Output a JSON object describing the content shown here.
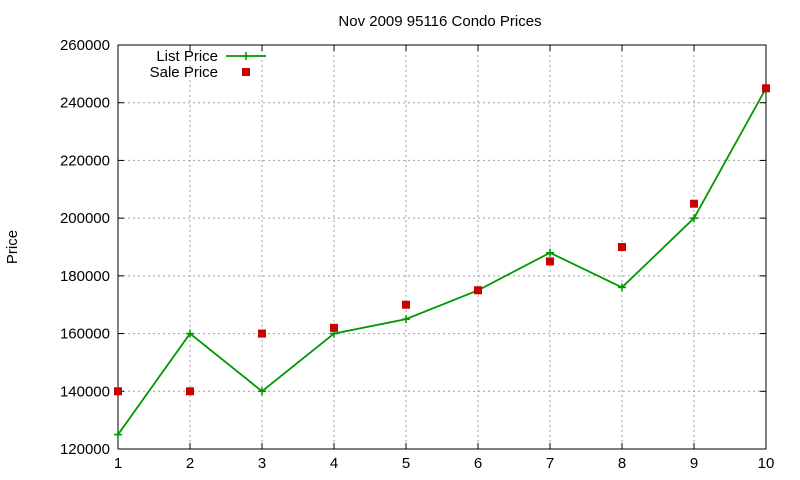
{
  "chart_data": {
    "type": "line",
    "title": "Nov 2009 95116 Condo Prices",
    "xlabel": "",
    "ylabel": "Price",
    "xlim": [
      1,
      10
    ],
    "ylim": [
      120000,
      260000
    ],
    "x_ticks": [
      "1",
      "2",
      "3",
      "4",
      "5",
      "6",
      "7",
      "8",
      "9",
      "10"
    ],
    "y_ticks": [
      "120000",
      "140000",
      "160000",
      "180000",
      "200000",
      "220000",
      "240000",
      "260000"
    ],
    "grid": true,
    "legend_position": "top-left",
    "x": [
      1,
      2,
      3,
      4,
      5,
      6,
      7,
      8,
      9,
      10
    ],
    "series": [
      {
        "name": "List Price",
        "style": "line-points",
        "marker": "plus",
        "color": "#009900",
        "values": [
          125000,
          160000,
          140000,
          160000,
          165000,
          175000,
          188000,
          176000,
          200000,
          245000
        ]
      },
      {
        "name": "Sale Price",
        "style": "points",
        "marker": "square",
        "color": "#cc0000",
        "values": [
          140000,
          140000,
          160000,
          162000,
          170000,
          175000,
          185000,
          190000,
          205000,
          245000
        ]
      }
    ]
  }
}
